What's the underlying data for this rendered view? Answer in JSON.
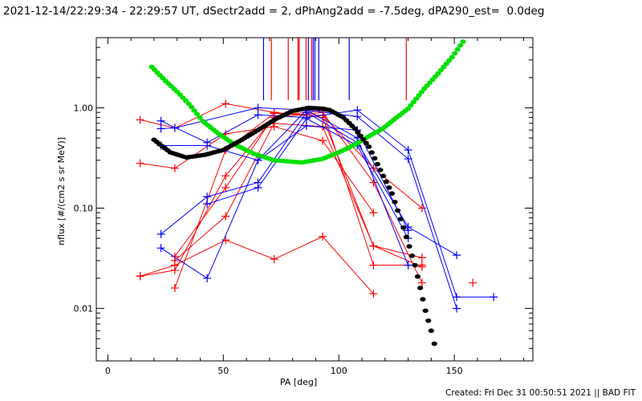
{
  "title": "2021-12-14/22:29:34 - 22:29:57 UT, dSectr2add = 2, dPhAng2add = -7.5deg, dPA290_est=  0.0deg",
  "footer": "Created: Fri Dec 31 00:50:51 2021 || BAD FIT",
  "colors": {
    "red": "#ff0000",
    "blue": "#0000ff",
    "green": "#00e000",
    "black": "#000000"
  },
  "chart_data": {
    "type": "line",
    "xlabel": "PA [deg]",
    "ylabel": "nflux [#/(cm2 s sr MeV)]",
    "xlim": [
      -5,
      184
    ],
    "ylim": [
      0.003,
      5
    ],
    "yscale": "log",
    "xticks": [
      {
        "v": 0,
        "label": "0"
      },
      {
        "v": 50,
        "label": "50"
      },
      {
        "v": 100,
        "label": "100"
      },
      {
        "v": 150,
        "label": "150"
      }
    ],
    "yticks": [
      {
        "v": 1,
        "label": "1.00"
      },
      {
        "v": 0.1,
        "label": "0.10"
      },
      {
        "v": 0.01,
        "label": "0.01"
      }
    ],
    "vertical_markers": [
      {
        "pa": 67.4,
        "color": "blue"
      },
      {
        "pa": 70.8,
        "color": "red"
      },
      {
        "pa": 78.1,
        "color": "red"
      },
      {
        "pa": 82.3,
        "color": "red"
      },
      {
        "pa": 82.8,
        "color": "red"
      },
      {
        "pa": 85.8,
        "color": "red"
      },
      {
        "pa": 86.8,
        "color": "blue"
      },
      {
        "pa": 88.2,
        "color": "red"
      },
      {
        "pa": 88.9,
        "color": "blue"
      },
      {
        "pa": 89.6,
        "color": "blue"
      },
      {
        "pa": 91.3,
        "color": "blue"
      },
      {
        "pa": 104.5,
        "color": "blue"
      },
      {
        "pa": 129.2,
        "color": "red"
      }
    ],
    "series": [
      {
        "name": "red-1",
        "color": "red",
        "points": [
          [
            14,
            0.76
          ],
          [
            29,
            0.63
          ],
          [
            51,
            1.1
          ],
          [
            72,
            0.9
          ],
          [
            93,
            0.8
          ],
          [
            115,
            0.042
          ],
          [
            136,
            0.026
          ]
        ]
      },
      {
        "name": "red-2",
        "color": "red",
        "points": [
          [
            14,
            0.28
          ],
          [
            29,
            0.25
          ],
          [
            51,
            0.55
          ],
          [
            72,
            0.65
          ],
          [
            93,
            0.47
          ],
          [
            115,
            0.09
          ]
        ]
      },
      {
        "name": "red-3",
        "color": "red",
        "points": [
          [
            14,
            0.021
          ],
          [
            29,
            0.027
          ],
          [
            51,
            0.048
          ],
          [
            72,
            0.031
          ],
          [
            93,
            0.052
          ],
          [
            115,
            0.014
          ]
        ]
      },
      {
        "name": "red-4",
        "color": "red",
        "points": [
          [
            14,
            0.021
          ],
          [
            29,
            0.024
          ],
          [
            51,
            0.21
          ],
          [
            72,
            0.8
          ],
          [
            93,
            0.9
          ],
          [
            115,
            0.18
          ],
          [
            136,
            0.018
          ]
        ]
      },
      {
        "name": "red-5",
        "color": "red",
        "points": [
          [
            29,
            0.033
          ],
          [
            51,
            0.16
          ],
          [
            72,
            0.83
          ],
          [
            93,
            0.94
          ],
          [
            115,
            0.027
          ],
          [
            130,
            0.027
          ],
          [
            136,
            0.027
          ]
        ]
      },
      {
        "name": "red-6",
        "color": "red",
        "points": [
          [
            29,
            0.016
          ],
          [
            51,
            0.38
          ],
          [
            72,
            0.88
          ],
          [
            93,
            0.84
          ],
          [
            115,
            0.25
          ],
          [
            136,
            0.1
          ]
        ]
      },
      {
        "name": "red-7",
        "color": "red",
        "points": [
          [
            29,
            0.03
          ],
          [
            51,
            0.083
          ],
          [
            72,
            0.7
          ],
          [
            93,
            0.65
          ],
          [
            115,
            0.042
          ],
          [
            136,
            0.032
          ]
        ]
      },
      {
        "name": "red-8",
        "color": "red",
        "points": [
          [
            158,
            0.018
          ]
        ]
      },
      {
        "name": "blue-1",
        "color": "blue",
        "points": [
          [
            23,
            0.74
          ],
          [
            43,
            0.45
          ],
          [
            65,
            0.85
          ],
          [
            86,
            0.8
          ],
          [
            108,
            0.95
          ],
          [
            130,
            0.38
          ],
          [
            151,
            0.013
          ],
          [
            167,
            0.013
          ]
        ]
      },
      {
        "name": "blue-2",
        "color": "blue",
        "points": [
          [
            23,
            0.62
          ],
          [
            29,
            0.63
          ],
          [
            65,
            1.0
          ],
          [
            86,
            0.95
          ],
          [
            108,
            0.82
          ],
          [
            130,
            0.31
          ],
          [
            151,
            0.01
          ]
        ]
      },
      {
        "name": "blue-3",
        "color": "blue",
        "points": [
          [
            23,
            0.055
          ],
          [
            43,
            0.13
          ],
          [
            65,
            0.18
          ],
          [
            86,
            0.9
          ],
          [
            108,
            0.45
          ],
          [
            130,
            0.065
          ],
          [
            151,
            0.034
          ]
        ]
      },
      {
        "name": "blue-4",
        "color": "blue",
        "points": [
          [
            23,
            0.04
          ],
          [
            43,
            0.02
          ],
          [
            65,
            0.3
          ],
          [
            86,
            0.95
          ],
          [
            108,
            0.5
          ],
          [
            130,
            0.027
          ]
        ]
      },
      {
        "name": "blue-5",
        "color": "blue",
        "points": [
          [
            23,
            0.42
          ],
          [
            43,
            0.42
          ],
          [
            65,
            0.3
          ],
          [
            86,
            0.66
          ],
          [
            108,
            0.6
          ],
          [
            130,
            0.06
          ]
        ]
      },
      {
        "name": "blue-6",
        "color": "blue",
        "points": [
          [
            43,
            0.11
          ],
          [
            65,
            0.16
          ],
          [
            86,
            0.78
          ],
          [
            108,
            0.42
          ],
          [
            130,
            0.05
          ]
        ]
      }
    ],
    "fits": [
      {
        "name": "green-fit",
        "color": "green",
        "points": [
          [
            19,
            2.56
          ],
          [
            25,
            1.85
          ],
          [
            30,
            1.45
          ],
          [
            35,
            1.1
          ],
          [
            41,
            0.74
          ],
          [
            48,
            0.55
          ],
          [
            55,
            0.43
          ],
          [
            63,
            0.35
          ],
          [
            72,
            0.3
          ],
          [
            84,
            0.285
          ],
          [
            93,
            0.31
          ],
          [
            100,
            0.36
          ],
          [
            107,
            0.43
          ],
          [
            113,
            0.52
          ],
          [
            119,
            0.62
          ],
          [
            125,
            0.8
          ],
          [
            130,
            0.98
          ],
          [
            137,
            1.55
          ],
          [
            143,
            2.2
          ],
          [
            149,
            3.2
          ],
          [
            155,
            5.0
          ]
        ]
      },
      {
        "name": "black-fit",
        "color": "black",
        "points": [
          [
            20,
            0.48
          ],
          [
            27,
            0.36
          ],
          [
            34,
            0.32
          ],
          [
            42,
            0.34
          ],
          [
            50,
            0.38
          ],
          [
            58,
            0.48
          ],
          [
            66,
            0.62
          ],
          [
            73,
            0.78
          ],
          [
            80,
            0.93
          ],
          [
            87,
            1.0
          ],
          [
            93,
            0.98
          ],
          [
            96,
            0.95
          ],
          [
            102,
            0.8
          ],
          [
            107,
            0.62
          ],
          [
            113,
            0.41
          ],
          [
            118,
            0.24
          ],
          [
            123,
            0.14
          ],
          [
            128,
            0.064
          ],
          [
            133,
            0.027
          ],
          [
            137.5,
            0.0095
          ],
          [
            140,
            0.006
          ],
          [
            142.7,
            0.0033
          ]
        ]
      }
    ]
  }
}
